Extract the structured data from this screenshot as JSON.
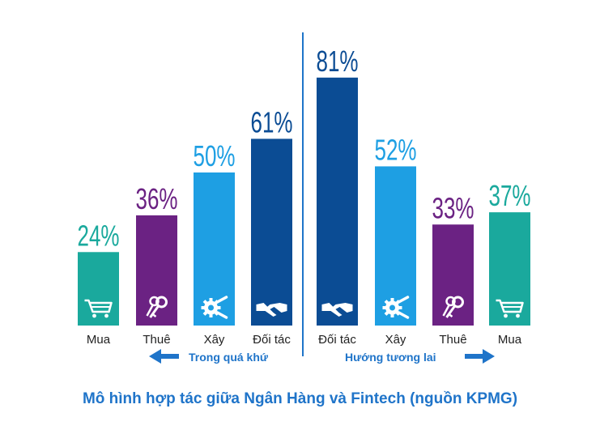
{
  "chart_data": {
    "type": "bar",
    "title": "",
    "caption": "Mô hình hợp tác giữa Ngân Hàng và Fintech (nguồn KPMG)",
    "ylim": [
      0,
      100
    ],
    "groups": [
      {
        "label": "Trong quá khứ",
        "arrow": "left",
        "bars": [
          {
            "category": "Mua",
            "value": 24,
            "value_label": "24%",
            "color": "#1aa99d",
            "icon": "shopping-cart-icon"
          },
          {
            "category": "Thuê",
            "value": 36,
            "value_label": "36%",
            "color": "#6b2283",
            "icon": "keys-icon"
          },
          {
            "category": "Xây",
            "value": 50,
            "value_label": "50%",
            "color": "#1e9fe3",
            "icon": "gear-wrench-icon"
          },
          {
            "category": "Đối tác",
            "value": 61,
            "value_label": "61%",
            "color": "#0b4c94",
            "icon": "handshake-icon"
          }
        ]
      },
      {
        "label": "Hướng tương lai",
        "arrow": "right",
        "bars": [
          {
            "category": "Đối tác",
            "value": 81,
            "value_label": "81%",
            "color": "#0b4c94",
            "icon": "handshake-icon"
          },
          {
            "category": "Xây",
            "value": 52,
            "value_label": "52%",
            "color": "#1e9fe3",
            "icon": "gear-wrench-icon"
          },
          {
            "category": "Thuê",
            "value": 33,
            "value_label": "33%",
            "color": "#6b2283",
            "icon": "keys-icon"
          },
          {
            "category": "Mua",
            "value": 37,
            "value_label": "37%",
            "color": "#1aa99d",
            "icon": "shopping-cart-icon"
          }
        ]
      }
    ],
    "divider_color": "#1f74c9",
    "text_color": "#1f74c9"
  }
}
